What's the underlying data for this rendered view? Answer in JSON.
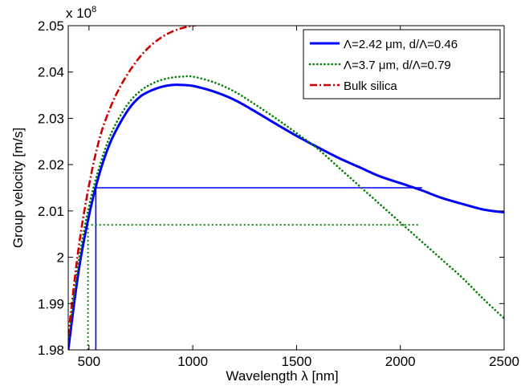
{
  "chart_data": {
    "type": "line",
    "xlabel": "Wavelength λ [nm]",
    "ylabel": "Group velocity [m/s]",
    "y_exponent_label": "x 10",
    "y_exponent_power": "8",
    "xlim": [
      400,
      2500
    ],
    "ylim": [
      1.98,
      2.05
    ],
    "xticks": [
      500,
      1000,
      1500,
      2000,
      2500
    ],
    "xtick_labels": [
      "500",
      "1000",
      "1500",
      "2000",
      "2500"
    ],
    "yticks": [
      1.98,
      1.99,
      2.0,
      2.01,
      2.02,
      2.03,
      2.04,
      2.05
    ],
    "ytick_labels": [
      "1.98",
      "1.99",
      "2",
      "2.01",
      "2.02",
      "2.03",
      "2.04",
      "2.05"
    ],
    "grid": false,
    "legend_position": "top-right",
    "series": [
      {
        "name": "Λ=2.42 μm, d/Λ=0.46",
        "color": "#0000ff",
        "style": "solid",
        "x": [
          400,
          450,
          500,
          550,
          600,
          650,
          700,
          750,
          800,
          850,
          900,
          950,
          1000,
          1100,
          1200,
          1300,
          1400,
          1500,
          1600,
          1700,
          1800,
          1900,
          2000,
          2100,
          2200,
          2300,
          2400,
          2500
        ],
        "y": [
          1.98,
          1.997,
          2.009,
          2.018,
          2.0245,
          2.029,
          2.0325,
          2.0348,
          2.036,
          2.0368,
          2.0372,
          2.0372,
          2.037,
          2.0358,
          2.034,
          2.0315,
          2.0288,
          2.0262,
          2.0238,
          2.0215,
          2.0195,
          2.0175,
          2.016,
          2.0145,
          2.0128,
          2.0115,
          2.0103,
          2.0097
        ]
      },
      {
        "name": "Λ=3.7 μm, d/Λ=0.79",
        "color": "#008000",
        "style": "dotted",
        "x": [
          400,
          450,
          500,
          550,
          600,
          650,
          700,
          750,
          800,
          850,
          900,
          950,
          1000,
          1100,
          1200,
          1300,
          1400,
          1500,
          1600,
          1700,
          1800,
          1900,
          2000,
          2100,
          2200,
          2300,
          2400,
          2500
        ],
        "y": [
          1.982,
          1.999,
          2.011,
          2.0195,
          2.026,
          2.0305,
          2.0338,
          2.036,
          2.0374,
          2.0383,
          2.0388,
          2.039,
          2.039,
          2.0378,
          2.0358,
          2.033,
          2.03,
          2.0268,
          2.0235,
          2.0195,
          2.0155,
          2.0115,
          2.0075,
          2.0035,
          1.9995,
          1.9955,
          1.991,
          1.9868
        ]
      },
      {
        "name": "Bulk silica",
        "color": "#cc0000",
        "style": "dashdot",
        "x": [
          400,
          450,
          500,
          550,
          600,
          650,
          700,
          750,
          800,
          850,
          900,
          950,
          1000,
          1050
        ],
        "y": [
          1.983,
          2.002,
          2.0155,
          2.0255,
          2.032,
          2.0368,
          2.0405,
          2.0435,
          2.0458,
          2.0475,
          2.0487,
          2.0495,
          2.05,
          2.0503
        ]
      }
    ],
    "reference_lines": [
      {
        "series": "Λ=2.42 μm, d/Λ=0.46",
        "color": "#0000ff",
        "style": "solid",
        "y": 2.015,
        "x_left": 533,
        "x_right": 2105
      },
      {
        "series": "Λ=3.7 μm, d/Λ=0.79",
        "color": "#008000",
        "style": "dotted",
        "y": 2.007,
        "x_left": 495,
        "x_right": 2095
      }
    ]
  }
}
